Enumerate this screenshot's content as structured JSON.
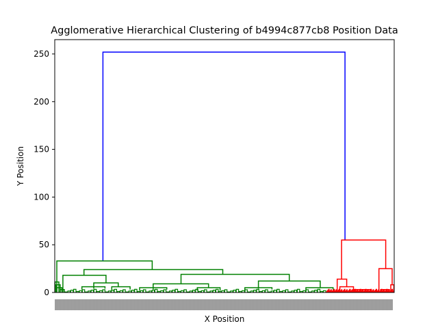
{
  "chart_data": {
    "type": "dendrogram",
    "title": "Agglomerative Hierarchical Clustering of b4994c877cb8 Position Data",
    "xlabel": "X Position",
    "ylabel": "Y Position",
    "ylim": [
      0,
      265
    ],
    "yticks": [
      0,
      50,
      100,
      150,
      200,
      250
    ],
    "grid": false,
    "legend": "none",
    "colors": {
      "root": "#0000ff",
      "cluster_1": "#008000",
      "cluster_2": "#ff0000"
    },
    "clusters": [
      {
        "name": "cluster_1",
        "color": "#008000",
        "merge_height": 33
      },
      {
        "name": "cluster_2",
        "color": "#ff0000",
        "merge_height": 55
      }
    ],
    "root_merge_height": 252,
    "links": [
      {
        "color": "#0000ff",
        "x": [
          0.142,
          0.142,
          0.855,
          0.855
        ],
        "y": [
          33,
          252,
          252,
          55
        ]
      },
      {
        "color": "#008000",
        "x": [
          0.006,
          0.006,
          0.287,
          0.287
        ],
        "y": [
          0,
          33,
          33,
          24
        ]
      },
      {
        "color": "#008000",
        "x": [
          0.086,
          0.086,
          0.495,
          0.495
        ],
        "y": [
          18,
          24,
          24,
          19
        ]
      },
      {
        "color": "#008000",
        "x": [
          0.024,
          0.024,
          0.151,
          0.151
        ],
        "y": [
          0,
          18,
          18,
          10
        ]
      },
      {
        "color": "#008000",
        "x": [
          0.372,
          0.372,
          0.691,
          0.691
        ],
        "y": [
          9,
          19,
          19,
          12
        ]
      },
      {
        "color": "#008000",
        "x": [
          0.29,
          0.29,
          0.453,
          0.453
        ],
        "y": [
          3,
          9,
          9,
          5
        ]
      },
      {
        "color": "#008000",
        "x": [
          0.6,
          0.6,
          0.782,
          0.782
        ],
        "y": [
          4,
          12,
          12,
          5
        ]
      },
      {
        "color": "#008000",
        "x": [
          0.115,
          0.115,
          0.187,
          0.187
        ],
        "y": [
          4,
          10,
          10,
          6
        ]
      },
      {
        "color": "#008000",
        "x": [
          0.08,
          0.08,
          0.148,
          0.148
        ],
        "y": [
          3,
          6,
          6,
          4
        ]
      },
      {
        "color": "#008000",
        "x": [
          0.168,
          0.168,
          0.222,
          0.222
        ],
        "y": [
          3,
          6,
          6,
          3
        ]
      },
      {
        "color": "#008000",
        "x": [
          0.25,
          0.25,
          0.33,
          0.33
        ],
        "y": [
          2,
          5,
          5,
          3
        ]
      },
      {
        "color": "#008000",
        "x": [
          0.42,
          0.42,
          0.487,
          0.487
        ],
        "y": [
          2,
          5,
          5,
          2
        ]
      },
      {
        "color": "#008000",
        "x": [
          0.56,
          0.56,
          0.64,
          0.64
        ],
        "y": [
          2,
          5,
          5,
          3
        ]
      },
      {
        "color": "#008000",
        "x": [
          0.74,
          0.74,
          0.82,
          0.82
        ],
        "y": [
          2,
          5,
          5,
          3
        ]
      },
      {
        "color": "#008000",
        "x": [
          0.001,
          0.001,
          0.012,
          0.012
        ],
        "y": [
          0,
          11,
          11,
          0
        ]
      },
      {
        "color": "#008000",
        "x": [
          0.004,
          0.004,
          0.016,
          0.016
        ],
        "y": [
          0,
          8,
          8,
          0
        ]
      },
      {
        "color": "#008000",
        "x": [
          0.006,
          0.006,
          0.021,
          0.021
        ],
        "y": [
          0,
          5,
          5,
          0
        ]
      },
      {
        "color": "#008000",
        "x": [
          0.016,
          0.016,
          0.028,
          0.028
        ],
        "y": [
          0,
          3,
          3,
          0
        ]
      },
      {
        "color": "#ff0000",
        "x": [
          0.845,
          0.845,
          0.975,
          0.975
        ],
        "y": [
          14,
          55,
          55,
          25
        ]
      },
      {
        "color": "#ff0000",
        "x": [
          0.832,
          0.832,
          0.86,
          0.86
        ],
        "y": [
          0,
          14,
          14,
          6
        ]
      },
      {
        "color": "#ff0000",
        "x": [
          0.84,
          0.84,
          0.88,
          0.88
        ],
        "y": [
          0,
          6,
          6,
          2
        ]
      },
      {
        "color": "#ff0000",
        "x": [
          0.955,
          0.955,
          0.994,
          0.994
        ],
        "y": [
          2,
          25,
          25,
          8
        ]
      },
      {
        "color": "#ff0000",
        "x": [
          0.88,
          0.88,
          0.93,
          0.93
        ],
        "y": [
          0,
          3,
          3,
          1
        ]
      },
      {
        "color": "#ff0000",
        "x": [
          0.99,
          0.99,
          0.999,
          0.999
        ],
        "y": [
          0,
          8,
          8,
          0
        ]
      },
      {
        "color": "#ff0000",
        "x": [
          0.96,
          0.96,
          0.985,
          0.985
        ],
        "y": [
          0,
          3,
          3,
          0
        ]
      }
    ],
    "fine_leaf_links": {
      "cluster_1_span": [
        0.03,
        0.8
      ],
      "cluster_2_span": [
        0.8,
        1.0
      ]
    },
    "x_tick_labels_note": "dense unreadable leaf labels along x-axis"
  }
}
